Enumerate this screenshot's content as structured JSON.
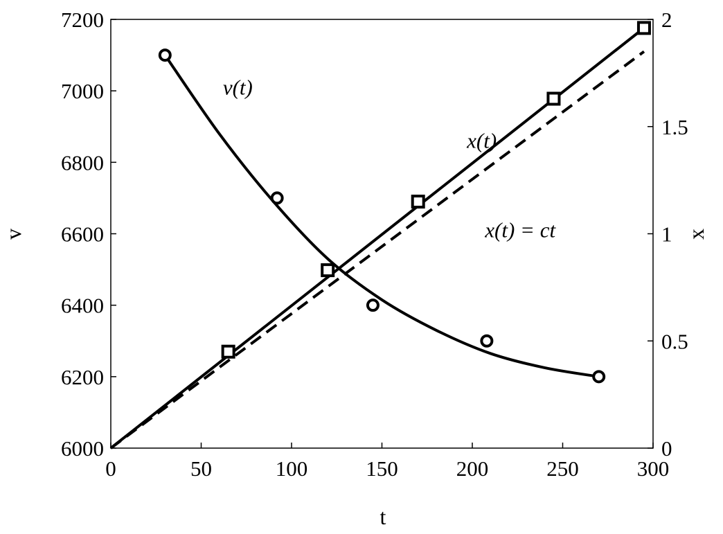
{
  "chart_data": {
    "type": "line",
    "xlabel": "t",
    "ylabel_left": "v",
    "ylabel_right": "x",
    "xlim": [
      0,
      300
    ],
    "ylim_left": [
      6000,
      7200
    ],
    "ylim_right": [
      0,
      2
    ],
    "grid": false,
    "x_ticks": [
      0,
      50,
      100,
      150,
      200,
      250,
      300
    ],
    "y_left_ticks": [
      6000,
      6200,
      6400,
      6600,
      6800,
      7000,
      7200
    ],
    "y_right_ticks": [
      "0",
      "0.5",
      "1",
      "1.5",
      "2"
    ],
    "y_right_tick_values": [
      0,
      0.5,
      1,
      1.5,
      2
    ],
    "series": [
      {
        "axis": "left",
        "style": "solid",
        "marker": "circle",
        "points": [
          [
            30,
            7100
          ],
          [
            92,
            6700
          ],
          [
            145,
            6400
          ],
          [
            208,
            6300
          ],
          [
            270,
            6200
          ]
        ],
        "fit_curve": [
          [
            30,
            7100
          ],
          [
            60,
            6880
          ],
          [
            90,
            6690
          ],
          [
            120,
            6530
          ],
          [
            150,
            6415
          ],
          [
            180,
            6330
          ],
          [
            210,
            6265
          ],
          [
            240,
            6225
          ],
          [
            270,
            6200
          ]
        ]
      },
      {
        "axis": "right",
        "style": "solid",
        "marker": "square",
        "points": [
          [
            65,
            0.45
          ],
          [
            120,
            0.83
          ],
          [
            170,
            1.15
          ],
          [
            245,
            1.63
          ],
          [
            295,
            1.96
          ]
        ],
        "fit_line": [
          [
            0,
            0
          ],
          [
            295,
            1.96
          ]
        ]
      },
      {
        "axis": "right",
        "style": "dashed",
        "marker": "none",
        "fit_line": [
          [
            0,
            0
          ],
          [
            295,
            1.85
          ]
        ]
      }
    ],
    "annotations": [
      {
        "text": "v(t)",
        "x": 62,
        "y": 6990,
        "axis": "left"
      },
      {
        "text": "x(t)",
        "x": 197,
        "y": 6840,
        "axis": "left"
      },
      {
        "text": "x(t) = ct",
        "x": 207,
        "y": 6590,
        "axis": "left"
      }
    ]
  }
}
